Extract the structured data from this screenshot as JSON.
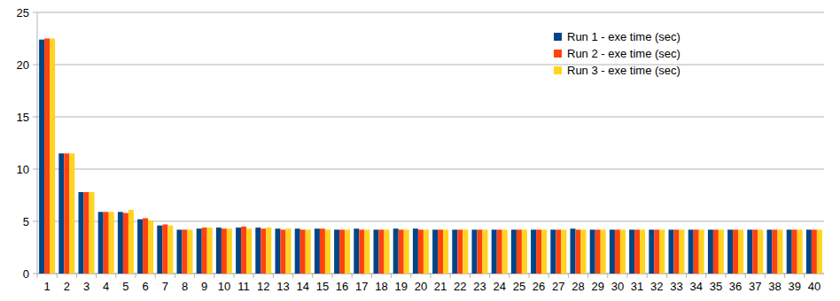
{
  "chart_data": {
    "type": "bar",
    "categories": [
      "1",
      "2",
      "3",
      "4",
      "5",
      "6",
      "7",
      "8",
      "9",
      "10",
      "11",
      "12",
      "13",
      "14",
      "15",
      "16",
      "17",
      "18",
      "19",
      "20",
      "21",
      "22",
      "23",
      "24",
      "25",
      "26",
      "27",
      "28",
      "29",
      "30",
      "31",
      "32",
      "33",
      "34",
      "35",
      "36",
      "37",
      "38",
      "39",
      "40"
    ],
    "series": [
      {
        "name": "Run 1 - exe time (sec)",
        "color": "#004586",
        "values": [
          22.4,
          11.5,
          7.8,
          5.9,
          5.9,
          5.2,
          4.6,
          4.2,
          4.3,
          4.4,
          4.4,
          4.4,
          4.3,
          4.3,
          4.3,
          4.2,
          4.3,
          4.2,
          4.3,
          4.3,
          4.2,
          4.2,
          4.2,
          4.2,
          4.2,
          4.2,
          4.2,
          4.3,
          4.2,
          4.2,
          4.2,
          4.2,
          4.2,
          4.2,
          4.2,
          4.2,
          4.2,
          4.2,
          4.2,
          4.2
        ]
      },
      {
        "name": "Run 2 - exe time (sec)",
        "color": "#ff420e",
        "values": [
          22.5,
          11.5,
          7.8,
          5.9,
          5.8,
          5.3,
          4.7,
          4.2,
          4.4,
          4.3,
          4.5,
          4.3,
          4.2,
          4.2,
          4.3,
          4.2,
          4.2,
          4.2,
          4.2,
          4.2,
          4.2,
          4.2,
          4.2,
          4.2,
          4.2,
          4.2,
          4.2,
          4.2,
          4.2,
          4.2,
          4.2,
          4.2,
          4.2,
          4.2,
          4.2,
          4.2,
          4.2,
          4.2,
          4.2,
          4.2
        ]
      },
      {
        "name": "Run 3 - exe time (sec)",
        "color": "#ffd320",
        "values": [
          22.5,
          11.5,
          7.8,
          5.9,
          6.1,
          5.1,
          4.6,
          4.2,
          4.4,
          4.3,
          4.3,
          4.4,
          4.3,
          4.2,
          4.2,
          4.2,
          4.2,
          4.2,
          4.2,
          4.2,
          4.2,
          4.2,
          4.2,
          4.2,
          4.2,
          4.2,
          4.2,
          4.2,
          4.2,
          4.2,
          4.2,
          4.2,
          4.2,
          4.2,
          4.2,
          4.2,
          4.2,
          4.2,
          4.2,
          4.2
        ]
      }
    ],
    "ylim": [
      0,
      25
    ],
    "yticks": [
      0,
      5,
      10,
      15,
      20,
      25
    ],
    "grid": true,
    "legend": "top-right"
  }
}
